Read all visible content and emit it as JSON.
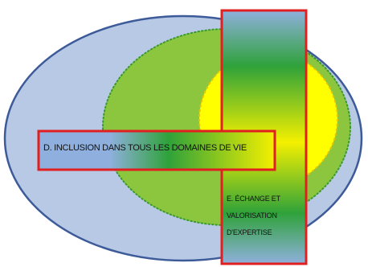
{
  "labels": {
    "inclusion": "D. INCLUSION DANS TOUS LES DOMAINES DE VIE",
    "exchange_lines": [
      "E. ÉCHANGE ET",
      "VALORISATION",
      "D'EXPERTISE"
    ]
  },
  "colors": {
    "outer_ellipse_fill": "#b7c9e4",
    "outer_ellipse_stroke": "#3d5a99",
    "green_ellipse_fill": "#8cc63f",
    "green_ellipse_stroke": "#3a9a2a",
    "yellow_ellipse_fill": "#ffff00",
    "yellow_ellipse_stroke": "#e8c400",
    "box_border": "#e02020",
    "gradient_blue": "#8fb0de",
    "gradient_green": "#2fa23a",
    "gradient_yellow": "#f4f000"
  }
}
